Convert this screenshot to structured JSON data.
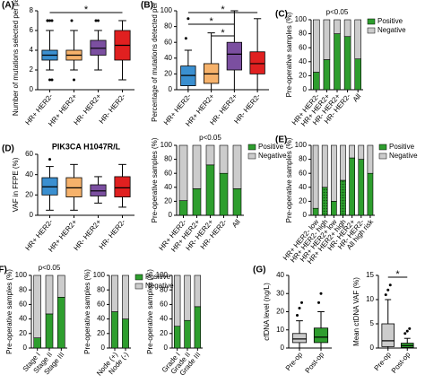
{
  "chart_data": [
    {
      "type": "box",
      "panel": "(A)",
      "ylabel": "Number of mutations selected per patient",
      "categories": [
        "HR+ HER2-",
        "HR+ HER2+",
        "HR- HER2+",
        "HR- HER2-"
      ],
      "boxes": [
        {
          "color": "#3a8fd0",
          "whisker_low": 2,
          "q1": 3,
          "median": 3.5,
          "q3": 4,
          "whisker_high": 6,
          "outliers": [
            7,
            7,
            7,
            7,
            1,
            1
          ]
        },
        {
          "color": "#f6b26b",
          "whisker_low": 2,
          "q1": 3,
          "median": 3.5,
          "q3": 4,
          "whisker_high": 6,
          "outliers": [
            7,
            1
          ]
        },
        {
          "color": "#7b4fa0",
          "whisker_low": 2,
          "q1": 3.5,
          "median": 4.2,
          "q3": 5,
          "whisker_high": 6,
          "outliers": [
            7,
            7
          ]
        },
        {
          "color": "#e02020",
          "whisker_low": 1,
          "q1": 3,
          "median": 4.5,
          "q3": 6,
          "whisker_high": 7,
          "outliers": []
        }
      ],
      "ylim": [
        0,
        8
      ],
      "yticks": [
        0,
        2,
        4,
        6,
        8
      ],
      "significance": [
        {
          "from": 0,
          "to": 3,
          "label": "*"
        }
      ]
    },
    {
      "type": "box",
      "panel": "(B)",
      "ylabel": "Percentage of mutations detected per patient",
      "categories": [
        "HR+ HER2-",
        "HR+ HER2+",
        "HR- HER2+",
        "HR- HER2-"
      ],
      "boxes": [
        {
          "color": "#3a8fd0",
          "whisker_low": 0,
          "q1": 5,
          "median": 18,
          "q3": 30,
          "whisker_high": 50,
          "outliers": [
            65,
            90
          ]
        },
        {
          "color": "#f6b26b",
          "whisker_low": 0,
          "q1": 8,
          "median": 20,
          "q3": 33,
          "whisker_high": 72,
          "outliers": []
        },
        {
          "color": "#7b4fa0",
          "whisker_low": 0,
          "q1": 25,
          "median": 45,
          "q3": 60,
          "whisker_high": 100,
          "outliers": []
        },
        {
          "color": "#e02020",
          "whisker_low": 0,
          "q1": 20,
          "median": 33,
          "q3": 48,
          "whisker_high": 90,
          "outliers": []
        }
      ],
      "ylim": [
        0,
        100
      ],
      "yticks": [
        0,
        20,
        40,
        60,
        80,
        100
      ],
      "significance": [
        {
          "from": 0,
          "to": 3,
          "label": "*"
        },
        {
          "from": 0,
          "to": 2,
          "label": "*"
        },
        {
          "from": 1,
          "to": 2,
          "label": "*"
        }
      ]
    },
    {
      "type": "stacked_bar",
      "panel": "(C)",
      "title": "p<0.05",
      "ylabel": "Pre-operative samples (%)",
      "categories": [
        "HR+ HER2-",
        "HR+ HER2+",
        "HR- HER2+",
        "HR- HER2-",
        "All"
      ],
      "series": [
        {
          "name": "Positive",
          "color": "#2e9e2e",
          "values": [
            25,
            43,
            80,
            76,
            44
          ]
        },
        {
          "name": "Negative",
          "color": "#cccccc",
          "values": [
            75,
            57,
            20,
            24,
            56
          ]
        }
      ],
      "ylim": [
        0,
        100
      ],
      "yticks": [
        0,
        20,
        40,
        60,
        80,
        100
      ],
      "legend": "right"
    },
    {
      "type": "box",
      "panel": "(D)",
      "title": "PIK3CA H1047R/L",
      "ylabel": "VAF in FFPE (%)",
      "categories": [
        "HR+ HER2-",
        "HR+ HER2+",
        "HR- HER2+",
        "HR- HER2-"
      ],
      "boxes": [
        {
          "color": "#3a8fd0",
          "whisker_low": 5,
          "q1": 20,
          "median": 28,
          "q3": 37,
          "whisker_high": 48,
          "outliers": [
            55
          ]
        },
        {
          "color": "#f6b26b",
          "whisker_low": 5,
          "q1": 18,
          "median": 27,
          "q3": 37,
          "whisker_high": 50,
          "outliers": []
        },
        {
          "color": "#7b4fa0",
          "whisker_low": 12,
          "q1": 19,
          "median": 24,
          "q3": 30,
          "whisker_high": 38,
          "outliers": []
        },
        {
          "color": "#e02020",
          "whisker_low": 8,
          "q1": 18,
          "median": 27,
          "q3": 38,
          "whisker_high": 50,
          "outliers": []
        }
      ],
      "ylim": [
        0,
        60
      ],
      "yticks": [
        0,
        20,
        40,
        60
      ]
    },
    {
      "type": "stacked_bar",
      "title": "p<0.05",
      "ylabel": "Pre-operative samples (%)",
      "categories": [
        "HR+ HER2-",
        "HR+ HER2+",
        "HR- HER2+",
        "HR- HER2-",
        "All"
      ],
      "series": [
        {
          "name": "Positive",
          "color": "#2e9e2e",
          "values": [
            21,
            38,
            72,
            60,
            38
          ]
        },
        {
          "name": "Negative",
          "color": "#cccccc",
          "values": [
            79,
            62,
            28,
            40,
            62
          ]
        }
      ],
      "ylim": [
        0,
        100
      ],
      "yticks": [
        0,
        20,
        40,
        60,
        80,
        100
      ],
      "legend": "right"
    },
    {
      "type": "stacked_bar",
      "panel": "(E)",
      "ylabel": "Pre-operative samples (%)",
      "categories": [
        "HR+ HER2- low",
        "HR+ HER2- high",
        "HR+ HER2+ low",
        "HR+ HER2+ high",
        "HR- HER2+",
        "HR- HER2-",
        "All high risk"
      ],
      "series": [
        {
          "name": "Positive",
          "color": "#2e9e2e",
          "values": [
            10,
            40,
            20,
            50,
            82,
            80,
            60
          ],
          "hatched": [
            false,
            true,
            false,
            true,
            false,
            false,
            false
          ]
        },
        {
          "name": "Negative",
          "color": "#cccccc",
          "values": [
            90,
            60,
            80,
            50,
            18,
            20,
            40
          ]
        }
      ],
      "ylim": [
        0,
        100
      ],
      "yticks": [
        0,
        20,
        40,
        60,
        80,
        100
      ],
      "legend": "right"
    },
    {
      "type": "stacked_bar",
      "panel": "(F)",
      "title": "p<0.05",
      "ylabel": "Pre-operative samples (%)",
      "categories": [
        "Stage I",
        "Stage II",
        "Stage III"
      ],
      "series": [
        {
          "color": "#2e9e2e",
          "values": [
            14,
            47,
            70
          ]
        },
        {
          "color": "#cccccc",
          "values": [
            86,
            53,
            30
          ]
        }
      ],
      "ylim": [
        0,
        100
      ],
      "yticks": [
        0,
        20,
        40,
        60,
        80,
        100
      ]
    },
    {
      "type": "stacked_bar",
      "ylabel": "Pre-operative samples (%)",
      "categories": [
        "Node (+)",
        "Node (-)"
      ],
      "series": [
        {
          "name": "Positive",
          "color": "#2e9e2e",
          "values": [
            50,
            40
          ]
        },
        {
          "name": "Negative",
          "color": "#cccccc",
          "values": [
            50,
            60
          ]
        }
      ],
      "ylim": [
        0,
        100
      ],
      "yticks": [
        0,
        20,
        40,
        60,
        80,
        100
      ],
      "legend": "right"
    },
    {
      "type": "stacked_bar",
      "ylabel": "Pre-operative samples (%)",
      "categories": [
        "Grade I",
        "Grade II",
        "Grade III"
      ],
      "series": [
        {
          "color": "#2e9e2e",
          "values": [
            30,
            38,
            57
          ]
        },
        {
          "color": "#cccccc",
          "values": [
            70,
            62,
            43
          ]
        }
      ],
      "ylim": [
        0,
        100
      ],
      "yticks": [
        0,
        20,
        40,
        60,
        80,
        100
      ]
    },
    {
      "type": "box",
      "panel": "(G)",
      "ylabel": "cfDNA level (ng/L)",
      "categories": [
        "Pre-op",
        "Post-op"
      ],
      "boxes": [
        {
          "color": "#cccccc",
          "whisker_low": 0,
          "q1": 3,
          "median": 5,
          "q3": 8,
          "whisker_high": 15,
          "outliers": [
            18,
            22,
            25
          ]
        },
        {
          "color": "#2e9e2e",
          "whisker_low": 0,
          "q1": 3,
          "median": 6,
          "q3": 11,
          "whisker_high": 20,
          "outliers": [
            25,
            30
          ]
        }
      ],
      "ylim": [
        0,
        40
      ],
      "yticks": [
        0,
        10,
        20,
        30,
        40
      ]
    },
    {
      "type": "box",
      "ylabel": "Mean ctDNA VAF (%)",
      "categories": [
        "Pre-op",
        "Post-op"
      ],
      "boxes": [
        {
          "color": "#cccccc",
          "whisker_low": 0,
          "q1": 0.3,
          "median": 1.5,
          "q3": 5,
          "whisker_high": 10,
          "outliers": [
            11,
            12,
            13
          ]
        },
        {
          "color": "#2e9e2e",
          "whisker_low": 0,
          "q1": 0.1,
          "median": 0.5,
          "q3": 1,
          "whisker_high": 2,
          "outliers": [
            3,
            3.5,
            4
          ]
        }
      ],
      "ylim": [
        0,
        15
      ],
      "yticks": [
        0,
        5,
        10,
        15
      ],
      "significance": [
        {
          "from": 0,
          "to": 1,
          "label": "*"
        }
      ]
    }
  ]
}
